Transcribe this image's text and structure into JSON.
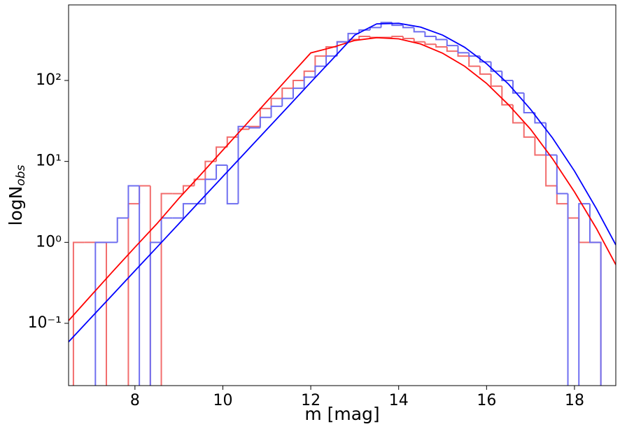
{
  "chart_data": {
    "type": "histogram",
    "x_label": "m [mag]",
    "y_label": "logN",
    "y_label_sub": "obs",
    "xlim": [
      6.49,
      18.94
    ],
    "ylim": [
      0.017,
      858
    ],
    "log_y": true,
    "xticks": [
      8,
      10,
      12,
      14,
      16,
      18
    ],
    "yticks": [
      {
        "value": 0.1,
        "label": "10⁻¹"
      },
      {
        "value": 1,
        "label": "10⁰"
      },
      {
        "value": 10,
        "label": "10¹"
      },
      {
        "value": 100,
        "label": "10²"
      }
    ],
    "bins": [
      6.6,
      6.85,
      7.1,
      7.35,
      7.6,
      7.85,
      8.1,
      8.35,
      8.6,
      8.85,
      9.1,
      9.35,
      9.6,
      9.85,
      10.1,
      10.35,
      10.6,
      10.85,
      11.1,
      11.35,
      11.6,
      11.85,
      12.1,
      12.35,
      12.6,
      12.85,
      13.1,
      13.35,
      13.6,
      13.85,
      14.1,
      14.35,
      14.6,
      14.85,
      15.1,
      15.35,
      15.6,
      15.85,
      16.1,
      16.35,
      16.6,
      16.85,
      17.1,
      17.35,
      17.6,
      17.85,
      18.1,
      18.35,
      18.6
    ],
    "series": [
      {
        "color": "#f26d6d",
        "values": [
          1,
          1,
          1,
          0,
          0,
          3,
          5,
          0,
          4,
          4,
          5,
          6,
          10,
          15,
          20,
          25,
          27,
          45,
          60,
          80,
          100,
          130,
          200,
          260,
          300,
          320,
          350,
          340,
          340,
          350,
          330,
          300,
          280,
          260,
          230,
          200,
          150,
          120,
          85,
          50,
          30,
          20,
          12,
          5,
          3,
          2,
          1,
          1
        ]
      },
      {
        "color": "#6f6ff0",
        "values": [
          0,
          0,
          1,
          1,
          2,
          5,
          0,
          1,
          2,
          2,
          3,
          3,
          6,
          9,
          3,
          27,
          26,
          35,
          48,
          60,
          80,
          110,
          150,
          200,
          300,
          380,
          420,
          450,
          520,
          480,
          450,
          400,
          350,
          320,
          270,
          220,
          200,
          170,
          130,
          100,
          70,
          40,
          30,
          12,
          4,
          0,
          3,
          1
        ]
      }
    ],
    "lines": [
      {
        "color": "#ff0000",
        "x": [
          6.49,
          7,
          7.5,
          8,
          8.5,
          9,
          9.5,
          10,
          10.5,
          11,
          11.5,
          12,
          12.5,
          13,
          13.5,
          14,
          14.5,
          15,
          15.5,
          16,
          16.5,
          17,
          17.5,
          18,
          18.5,
          18.94
        ],
        "values": [
          0.108,
          0.22,
          0.44,
          0.87,
          1.7,
          3.5,
          6.9,
          13.8,
          27.5,
          55,
          110,
          219,
          257,
          312,
          338,
          327,
          282,
          217,
          150,
          92,
          50,
          25,
          10.8,
          4.2,
          1.48,
          0.53
        ]
      },
      {
        "color": "#0000ff",
        "x": [
          6.49,
          7,
          7.5,
          8,
          8.5,
          9,
          9.5,
          10,
          10.5,
          11,
          11.5,
          12,
          12.5,
          13,
          13.5,
          14,
          14.5,
          15,
          15.5,
          16,
          16.5,
          17,
          17.5,
          18,
          18.5,
          18.94
        ],
        "values": [
          0.059,
          0.117,
          0.228,
          0.446,
          0.87,
          1.7,
          3.33,
          6.5,
          12.7,
          24.8,
          48.5,
          95,
          185,
          363,
          500,
          508,
          456,
          363,
          257,
          161,
          90,
          44,
          19.5,
          7.6,
          2.6,
          0.93
        ]
      }
    ]
  }
}
